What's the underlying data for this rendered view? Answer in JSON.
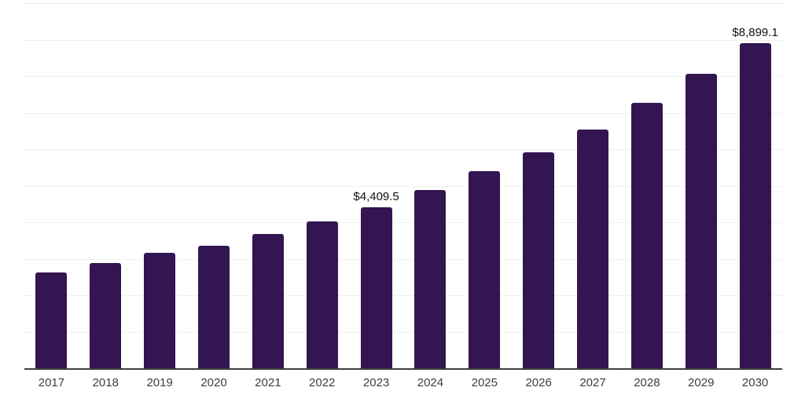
{
  "chart_data": {
    "type": "bar",
    "title": "",
    "xlabel": "",
    "ylabel": "",
    "categories": [
      "2017",
      "2018",
      "2019",
      "2020",
      "2021",
      "2022",
      "2023",
      "2024",
      "2025",
      "2026",
      "2027",
      "2028",
      "2029",
      "2030"
    ],
    "values": [
      2620,
      2880,
      3160,
      3350,
      3675,
      4020,
      4409.5,
      4880,
      5390,
      5910,
      6540,
      7270,
      8060,
      8899.1
    ],
    "data_labels": [
      "",
      "",
      "",
      "",
      "",
      "",
      "$4,409.5",
      "",
      "",
      "",
      "",
      "",
      "",
      "$8,899.1"
    ],
    "ylim": [
      0,
      10000
    ],
    "gridline_interval": 1000,
    "grid": "horizontal",
    "legend": "none",
    "colors": {
      "bar": "#331552",
      "axis_line": "#3f3f3f",
      "gridline": "#f0f0f0",
      "top_gridline": "#e8e8e8",
      "tick_label": "#3d3d3d",
      "data_label": "#111111",
      "background": "#ffffff"
    }
  }
}
